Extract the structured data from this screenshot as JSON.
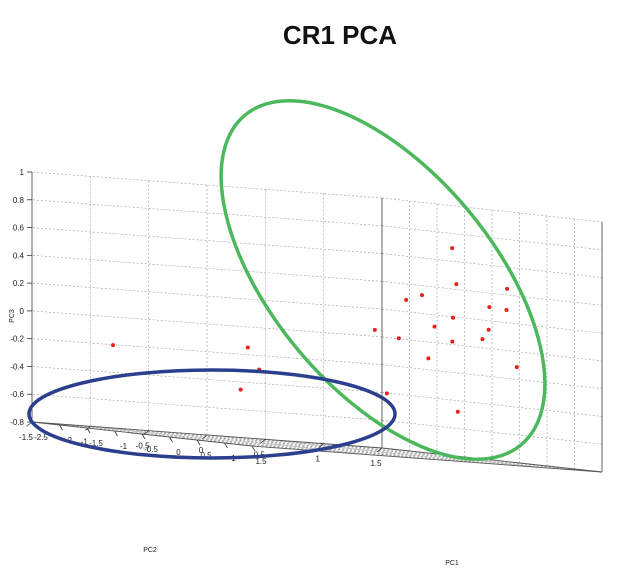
{
  "chart_data": {
    "type": "scatter",
    "title": "CR1 PCA",
    "xlabel": "PC1",
    "ylabel": "PC2",
    "zlabel": "PC3",
    "xlim": [
      -2.5,
      1.5
    ],
    "ylim": [
      -1.5,
      1.5
    ],
    "zlim": [
      -0.8,
      1
    ],
    "x_ticks": [
      "-2.5",
      "-2",
      "-1.5",
      "-1",
      "-0.5",
      "0",
      "0.5",
      "1",
      "1.5"
    ],
    "y_ticks": [
      "-1.5",
      "-1",
      "-0.5",
      "0",
      "0.5",
      "1",
      "1.5"
    ],
    "z_ticks": [
      "-0.8",
      "-0.6",
      "-0.4",
      "-0.2",
      "0",
      "0.2",
      "0.4",
      "0.6",
      "0.8",
      "1"
    ],
    "grid": true,
    "marker_color": "#e8211c",
    "points": [
      {
        "x": 0.2,
        "y": 1.3,
        "z": 0.45
      },
      {
        "x": 0.3,
        "y": 1.1,
        "z": 0.31
      },
      {
        "x": 0.5,
        "y": 1.0,
        "z": 0.15
      },
      {
        "x": 0.6,
        "y": 0.9,
        "z": 0.08
      },
      {
        "x": 0.4,
        "y": 1.2,
        "z": 0.3
      },
      {
        "x": 0.7,
        "y": 0.6,
        "z": 0.22
      },
      {
        "x": 0.9,
        "y": 0.5,
        "z": 0.05
      },
      {
        "x": 1.0,
        "y": 0.3,
        "z": 0.15
      },
      {
        "x": 1.1,
        "y": 0.2,
        "z": -0.08
      },
      {
        "x": 1.2,
        "y": -0.1,
        "z": 0.05
      },
      {
        "x": 1.4,
        "y": -0.4,
        "z": 0.1
      },
      {
        "x": -0.3,
        "y": 1.1,
        "z": 0.45
      },
      {
        "x": -0.5,
        "y": 0.9,
        "z": 0.35
      },
      {
        "x": -0.8,
        "y": 1.3,
        "z": 0.7
      },
      {
        "x": -1.0,
        "y": 1.0,
        "z": 0.3
      },
      {
        "x": 0.8,
        "y": 1.1,
        "z": -0.1
      },
      {
        "x": 1.0,
        "y": 0.5,
        "z": -0.45
      },
      {
        "x": -2.2,
        "y": 1.4,
        "z": -0.4
      },
      {
        "x": -2.4,
        "y": 0.4,
        "z": -0.3
      },
      {
        "x": -2.1,
        "y": 0.1,
        "z": -0.45
      },
      {
        "x": -2.3,
        "y": -0.9,
        "z": -0.2
      },
      {
        "x": 1.0,
        "y": -1.3,
        "z": -0.1
      }
    ],
    "annotations": [
      {
        "shape": "ellipse",
        "color": "#4cb85c"
      },
      {
        "shape": "ellipse",
        "color": "#2b3f8e"
      }
    ]
  }
}
